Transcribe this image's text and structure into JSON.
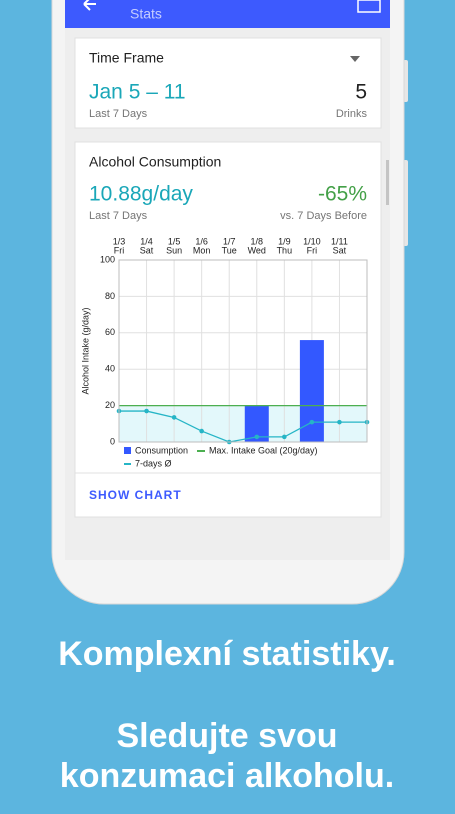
{
  "header": {
    "title": "Stats"
  },
  "time_frame": {
    "label": "Time Frame",
    "range": "Jan 5 – 11",
    "range_sub": "Last 7 Days",
    "count": "5",
    "count_sub": "Drinks"
  },
  "consumption": {
    "title": "Alcohol Consumption",
    "value": "10.88g/day",
    "value_sub": "Last 7 Days",
    "change": "-65%",
    "change_sub": "vs. 7 Days Before",
    "button": "SHOW CHART"
  },
  "chart_data": {
    "type": "bar",
    "ylabel": "Alcohol Intake (g/day)",
    "categories": [
      "1/3",
      "1/4",
      "1/5",
      "1/6",
      "1/7",
      "1/8",
      "1/9",
      "1/10",
      "1/11",
      null
    ],
    "weekdays": [
      "Fri",
      "Sat",
      "Sun",
      "Mon",
      "Tue",
      "Wed",
      "Thu",
      "Fri",
      "Sat",
      null
    ],
    "ylim": [
      0,
      100
    ],
    "yticks": [
      0,
      20,
      40,
      60,
      80,
      100
    ],
    "grid": true,
    "series": [
      {
        "name": "Consumption",
        "color": "#3358ff",
        "values": [
          0,
          0,
          0,
          0,
          0,
          20,
          0,
          56,
          0,
          0
        ]
      },
      {
        "name": "7-days Ø",
        "color": "#26b5c6",
        "type": "line",
        "values": [
          17,
          17,
          13.5,
          6,
          0,
          2.8,
          2.8,
          10.9,
          10.9,
          10.9
        ]
      }
    ],
    "goal": {
      "name": "Max. Intake Goal (20g/day)",
      "color": "#4caf50",
      "value": 20
    }
  },
  "promo": {
    "line1": "Komplexní statistiky.",
    "line2": "Sledujte svou",
    "line3": "konzumaci alkoholu."
  }
}
